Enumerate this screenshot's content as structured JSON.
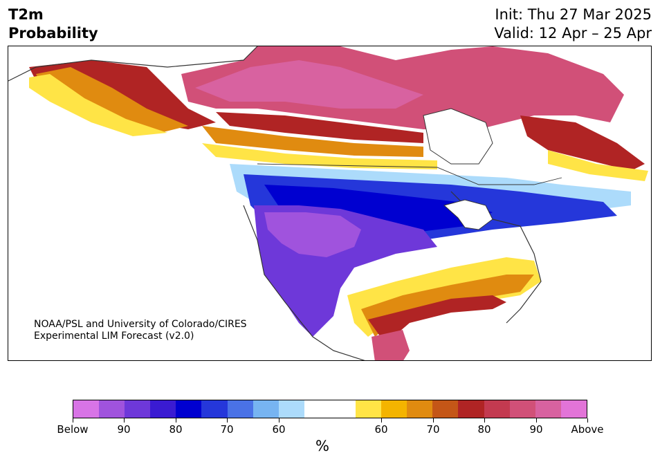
{
  "header": {
    "title_line1": "T2m",
    "title_line2": "Probability",
    "init": "Init: Thu 27 Mar 2025",
    "valid": "Valid: 12 Apr – 25 Apr"
  },
  "credit": {
    "line1": "NOAA/PSL and University of Colorado/CIRES",
    "line2": "Experimental LIM Forecast (v2.0)"
  },
  "colorbar": {
    "colors": [
      "#d874e6",
      "#a053dd",
      "#6e38d9",
      "#3a1bd2",
      "#0000d0",
      "#2537da",
      "#4a72e6",
      "#77b4f1",
      "#acdbfb",
      "#ffffff",
      "#ffffff",
      "#ffe446",
      "#f4b400",
      "#e08b10",
      "#c45617",
      "#b02424",
      "#c33a50",
      "#d15078",
      "#d862a0",
      "#e274d8"
    ],
    "labels": [
      "Below",
      "90",
      "80",
      "70",
      "60",
      "60",
      "70",
      "80",
      "90",
      "Above"
    ],
    "unit": "%"
  },
  "map": {
    "colors": {
      "land_outline": "#333333",
      "below_strong": "#a053dd",
      "below_mid": "#3a1bd2",
      "below_weak": "#77b4f1",
      "above_weak": "#ffe446",
      "above_mid": "#e08b10",
      "above_strong": "#b02424",
      "above_max": "#d862a0"
    }
  }
}
